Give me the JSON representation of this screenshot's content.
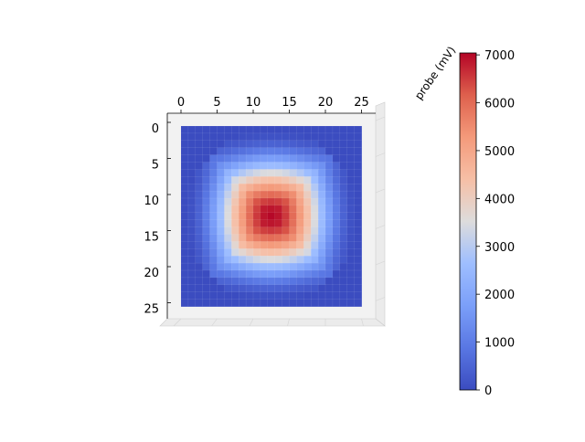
{
  "chart_data": {
    "type": "heatmap",
    "view": "3d-surface-top-down",
    "title": "",
    "x_ticks": [
      "0",
      "5",
      "10",
      "15",
      "20",
      "25"
    ],
    "y_ticks": [
      "0",
      "5",
      "10",
      "15",
      "20",
      "25"
    ],
    "z_axis_label": "probe (mV)",
    "grid_size": 26,
    "center": [
      12.5,
      12.5
    ],
    "radius": 12,
    "peak_value": 7000,
    "colormap": "coolwarm",
    "colorbar": {
      "min": 0,
      "max": 7040,
      "ticks": [
        "0",
        "1000",
        "2000",
        "3000",
        "4000",
        "5000",
        "6000",
        "7000"
      ],
      "tick_values": [
        0,
        1000,
        2000,
        3000,
        4000,
        5000,
        6000,
        7000
      ]
    },
    "grid": true
  }
}
